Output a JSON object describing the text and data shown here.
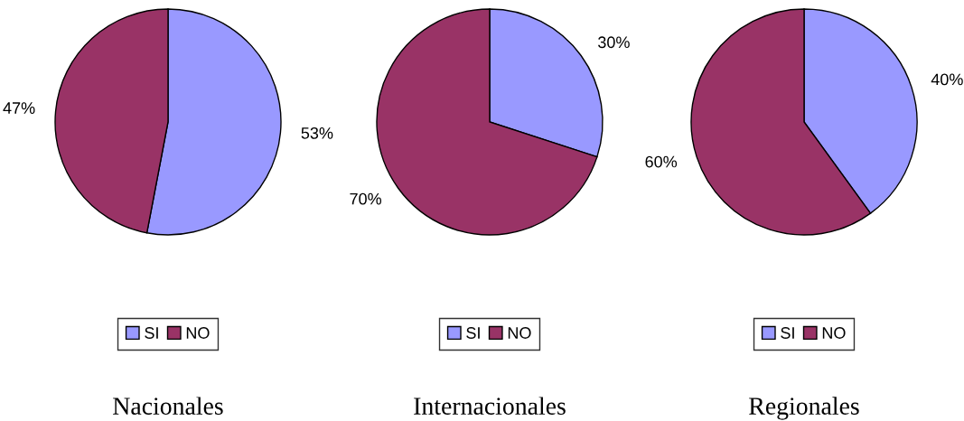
{
  "chart_data": [
    {
      "type": "pie",
      "title": "Nacionales",
      "categories": [
        "SI",
        "NO"
      ],
      "values": [
        53,
        47
      ],
      "colors": [
        "#9999ff",
        "#993366"
      ],
      "value_labels": [
        "53%",
        "47%"
      ],
      "legend": "bottom"
    },
    {
      "type": "pie",
      "title": "Internacionales",
      "categories": [
        "SI",
        "NO"
      ],
      "values": [
        30,
        70
      ],
      "colors": [
        "#9999ff",
        "#993366"
      ],
      "value_labels": [
        "30%",
        "70%"
      ],
      "legend": "bottom"
    },
    {
      "type": "pie",
      "title": "Regionales",
      "categories": [
        "SI",
        "NO"
      ],
      "values": [
        40,
        60
      ],
      "colors": [
        "#9999ff",
        "#993366"
      ],
      "value_labels": [
        "40%",
        "60%"
      ],
      "legend": "bottom"
    }
  ]
}
